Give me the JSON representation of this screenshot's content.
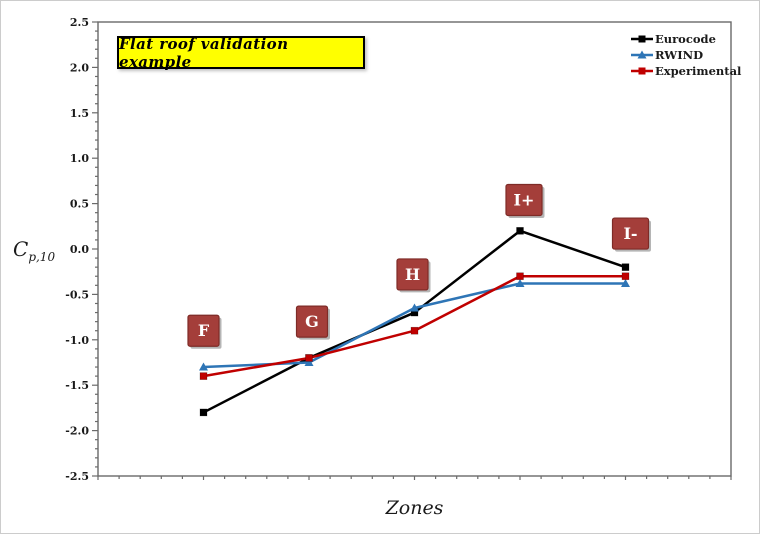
{
  "chart_data": {
    "type": "line",
    "title": "Flat roof validation example",
    "xlabel": "Zones",
    "ylabel_main": "C",
    "ylabel_sub": "p,10",
    "categories": [
      "F",
      "G",
      "H",
      "I+",
      "I-"
    ],
    "series": [
      {
        "name": "Eurocode",
        "color": "#000000",
        "marker": "square",
        "values": [
          -1.8,
          -1.2,
          -0.7,
          0.2,
          -0.2
        ]
      },
      {
        "name": "RWIND",
        "color": "#2E75B6",
        "marker": "triangle",
        "values": [
          -1.3,
          -1.25,
          -0.65,
          -0.38,
          -0.38
        ]
      },
      {
        "name": "Experimental",
        "color": "#C00000",
        "marker": "square",
        "values": [
          -1.4,
          -1.2,
          -0.9,
          -0.3,
          -0.3
        ]
      }
    ],
    "ylim": [
      -2.5,
      2.5
    ],
    "ytick_step_major": 0.5,
    "ytick_step_minor": 0.1,
    "x_minor_divisions": 30,
    "grid": false,
    "legend_position": "top-right",
    "zone_labels": [
      {
        "text": "F",
        "x_index": 0,
        "y_value": -0.9,
        "dx": 0
      },
      {
        "text": "G",
        "x_index": 1,
        "y_value": -0.8,
        "dx": 3
      },
      {
        "text": "H",
        "x_index": 2,
        "y_value": -0.28,
        "dx": -2
      },
      {
        "text": "I+",
        "x_index": 3,
        "y_value": 0.54,
        "dx": 4
      },
      {
        "text": "I-",
        "x_index": 4,
        "y_value": 0.17,
        "dx": 5
      }
    ],
    "zone_label_style": {
      "bg": "#A43E3A",
      "border": "#7E2B27",
      "text_color": "#ffffff"
    },
    "title_style": {
      "bg": "#FFFF00",
      "border": "#000000",
      "text_color": "#000000"
    },
    "frame_color": "#6a6a6a",
    "tick_label_color": "#1a1a1a"
  }
}
